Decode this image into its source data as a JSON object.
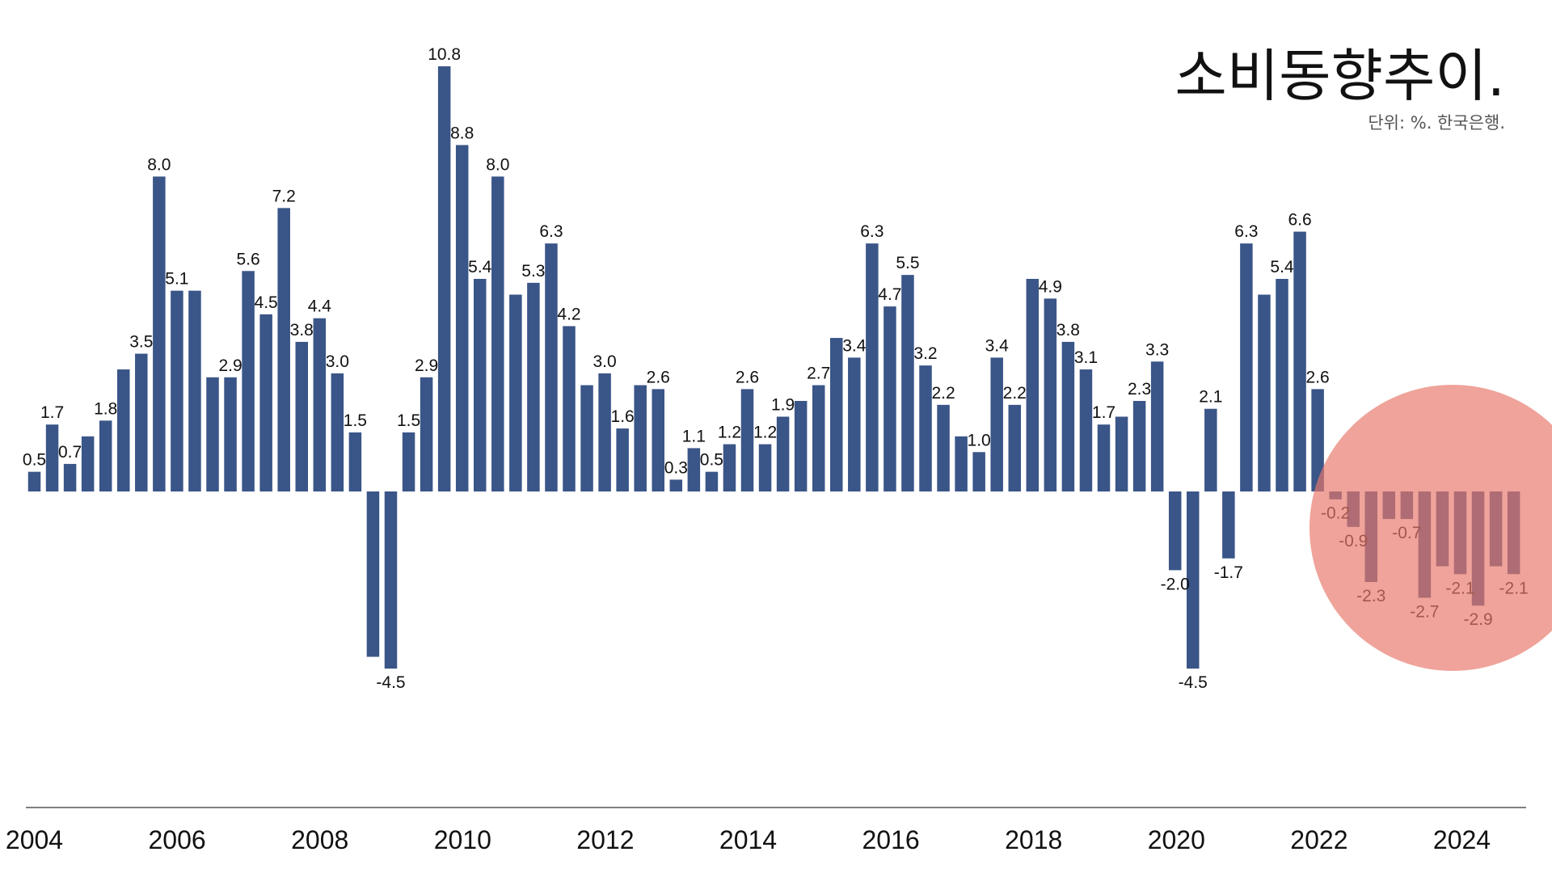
{
  "title": "소비동향추이.",
  "subtitle": "단위: %. 한국은행.",
  "colors": {
    "bar": "#3A5588",
    "highlight": "#E8786A",
    "axis": "#333333"
  },
  "chart_data": {
    "type": "bar",
    "title": "소비동향추이.",
    "subtitle": "단위: %. 한국은행.",
    "xlabel": "",
    "ylabel": "",
    "ylim": [
      -10,
      12
    ],
    "x_tick_labels": [
      "2004",
      "2006",
      "2008",
      "2010",
      "2012",
      "2014",
      "2016",
      "2018",
      "2020",
      "2022",
      "2024"
    ],
    "values": [
      0.5,
      1.7,
      0.7,
      1.4,
      1.8,
      3.1,
      3.5,
      8.0,
      5.1,
      5.1,
      2.9,
      2.9,
      5.6,
      4.5,
      7.2,
      3.8,
      4.4,
      3.0,
      1.5,
      -4.2,
      -4.5,
      1.5,
      2.9,
      10.8,
      8.8,
      5.4,
      8.0,
      5.0,
      5.3,
      6.3,
      4.2,
      2.7,
      3.0,
      1.6,
      2.7,
      2.6,
      0.3,
      1.1,
      0.5,
      1.2,
      2.6,
      1.2,
      1.9,
      2.3,
      2.7,
      3.9,
      3.4,
      6.3,
      4.7,
      5.5,
      3.2,
      2.2,
      1.4,
      1.0,
      3.4,
      2.2,
      5.4,
      4.9,
      3.8,
      3.1,
      1.7,
      1.9,
      2.3,
      3.3,
      -2.0,
      -4.5,
      2.1,
      -1.7,
      6.3,
      5.0,
      5.4,
      6.6,
      2.6,
      -0.2,
      -0.9,
      -2.3,
      -0.7,
      -0.7,
      -2.7,
      -1.9,
      -2.1,
      -2.9,
      -1.9,
      -2.1
    ],
    "data_labels": [
      "0.5",
      "1.7",
      "0.7",
      "",
      "1.8",
      "",
      "3.5",
      "8.0",
      "5.1",
      "",
      "",
      "2.9",
      "5.6",
      "4.5",
      "7.2",
      "3.8",
      "4.4",
      "3.0",
      "1.5",
      "",
      "-4.5",
      "1.5",
      "2.9",
      "10.8",
      "8.8",
      "5.4",
      "8.0",
      "",
      "5.3",
      "6.3",
      "4.2",
      "",
      "3.0",
      "1.6",
      "",
      "2.6",
      "0.3",
      "1.1",
      "0.5",
      "1.2",
      "2.6",
      "1.2",
      "1.9",
      "",
      "2.7",
      "",
      "3.4",
      "6.3",
      "4.7",
      "5.5",
      "3.2",
      "2.2",
      "",
      "1.0",
      "3.4",
      "2.2",
      "",
      "4.9",
      "3.8",
      "3.1",
      "1.7",
      "",
      "2.3",
      "3.3",
      "-2.0",
      "-4.5",
      "2.1",
      "-1.7",
      "6.3",
      "",
      "5.4",
      "6.6",
      "2.6",
      "-0.2",
      "-0.9",
      "-2.3",
      "",
      "-0.7",
      "-2.7",
      "",
      "-2.1",
      "-2.9",
      "",
      "-2.1"
    ],
    "highlight": {
      "shape": "circle",
      "covers": "2022–2024 negative bars"
    },
    "grid": false,
    "legend": "none"
  }
}
